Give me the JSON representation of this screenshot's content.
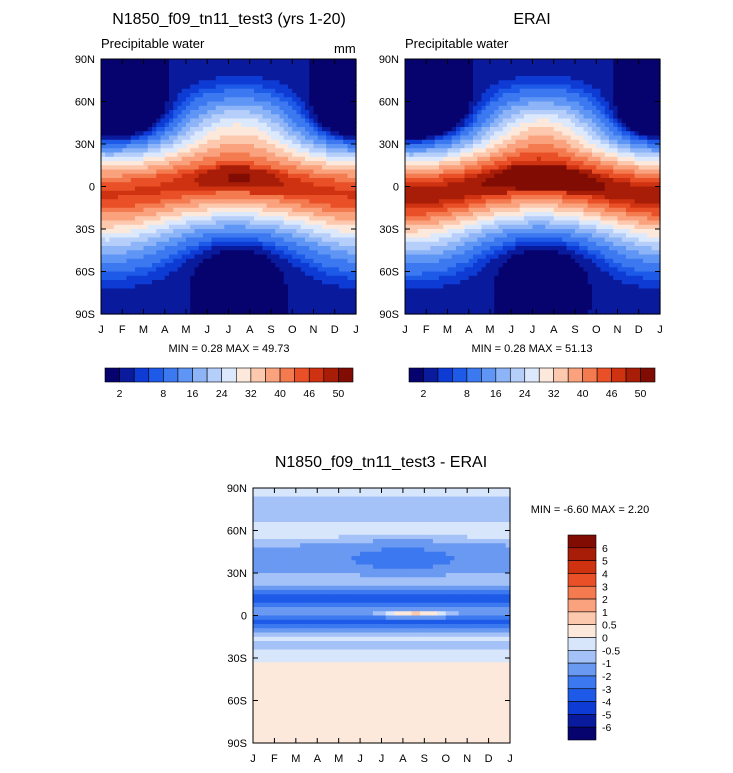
{
  "chart_data": [
    {
      "type": "heatmap",
      "panel": "model",
      "title": "N1850_f09_tn11_test3 (yrs 1-20)",
      "left_label": "Precipitable water",
      "units": "mm",
      "x_tick_labels": [
        "J",
        "F",
        "M",
        "A",
        "M",
        "J",
        "J",
        "A",
        "S",
        "O",
        "N",
        "D",
        "J"
      ],
      "y_tick_labels": [
        "90N",
        "60N",
        "30N",
        "0",
        "30S",
        "60S",
        "90S"
      ],
      "y_range": [
        -90,
        90
      ],
      "minmax_text": "MIN =   0.28 MAX =  49.73",
      "min": 0.28,
      "max": 49.73,
      "field": {
        "equator_peak": 46,
        "peak_month_shift": 0.9,
        "peak_lat_amp": 5,
        "band_width_deg": 24,
        "polar_value": 2,
        "nh_summer_boost": 14
      },
      "colorbar": {
        "levels": [
          2,
          4,
          6,
          8,
          12,
          16,
          20,
          24,
          28,
          32,
          36,
          40,
          43,
          46,
          48,
          50
        ],
        "tick_labels": [
          "2",
          "8",
          "16",
          "24",
          "32",
          "40",
          "46",
          "50"
        ],
        "colors": [
          "#06036e",
          "#0a1a9c",
          "#0d3bd4",
          "#1e5ae8",
          "#3c78f0",
          "#5f96f5",
          "#8cb4f7",
          "#b5cefa",
          "#dce8fc",
          "#fde8dc",
          "#fcc9ae",
          "#f9a27d",
          "#f47a50",
          "#ea5028",
          "#cf3210",
          "#a81d08",
          "#800c04"
        ]
      }
    },
    {
      "type": "heatmap",
      "panel": "observed",
      "title": "ERAI",
      "left_label": "Precipitable water",
      "x_tick_labels": [
        "J",
        "F",
        "M",
        "A",
        "M",
        "J",
        "J",
        "A",
        "S",
        "O",
        "N",
        "D",
        "J"
      ],
      "y_tick_labels": [
        "90N",
        "60N",
        "30N",
        "0",
        "30S",
        "60S",
        "90S"
      ],
      "y_range": [
        -90,
        90
      ],
      "minmax_text": "MIN =   0.28 MAX =  51.13",
      "min": 0.28,
      "max": 51.13,
      "field": {
        "equator_peak": 49,
        "peak_month_shift": 0.9,
        "peak_lat_amp": 6,
        "band_width_deg": 24,
        "polar_value": 2,
        "nh_summer_boost": 15
      },
      "colorbar": {
        "levels": [
          2,
          4,
          6,
          8,
          12,
          16,
          20,
          24,
          28,
          32,
          36,
          40,
          43,
          46,
          48,
          50
        ],
        "tick_labels": [
          "2",
          "8",
          "16",
          "24",
          "32",
          "40",
          "46",
          "50"
        ],
        "colors": [
          "#06036e",
          "#0a1a9c",
          "#0d3bd4",
          "#1e5ae8",
          "#3c78f0",
          "#5f96f5",
          "#8cb4f7",
          "#b5cefa",
          "#dce8fc",
          "#fde8dc",
          "#fcc9ae",
          "#f9a27d",
          "#f47a50",
          "#ea5028",
          "#cf3210",
          "#a81d08",
          "#800c04"
        ]
      }
    },
    {
      "type": "heatmap",
      "panel": "difference",
      "title": "N1850_f09_tn11_test3 - ERAI",
      "x_tick_labels": [
        "J",
        "F",
        "M",
        "A",
        "M",
        "J",
        "J",
        "A",
        "S",
        "O",
        "N",
        "D",
        "J"
      ],
      "y_tick_labels": [
        "90N",
        "60N",
        "30N",
        "0",
        "30S",
        "60S",
        "90S"
      ],
      "y_range": [
        -90,
        90
      ],
      "minmax_text": "MIN =  -6.60 MAX =   2.20",
      "min": -6.6,
      "max": 2.2,
      "colorbar": {
        "levels": [
          -6,
          -5,
          -4,
          -3,
          -2,
          -1,
          -0.5,
          0,
          0.5,
          1,
          2,
          3,
          4,
          5,
          6
        ],
        "tick_labels": [
          "6",
          "5",
          "4",
          "3",
          "2",
          "1",
          "0.5",
          "0",
          "-0.5",
          "-1",
          "-2",
          "-3",
          "-4",
          "-5",
          "-6"
        ],
        "colors": [
          "#06036e",
          "#0a1a9c",
          "#0d3bd4",
          "#1e5ae8",
          "#3c78f0",
          "#6a99f2",
          "#a4c2f7",
          "#d8e6fb",
          "#fde8dc",
          "#fcc9ae",
          "#f9a27d",
          "#f47a50",
          "#ea5028",
          "#cf3210",
          "#a81d08",
          "#800c04"
        ]
      }
    }
  ]
}
